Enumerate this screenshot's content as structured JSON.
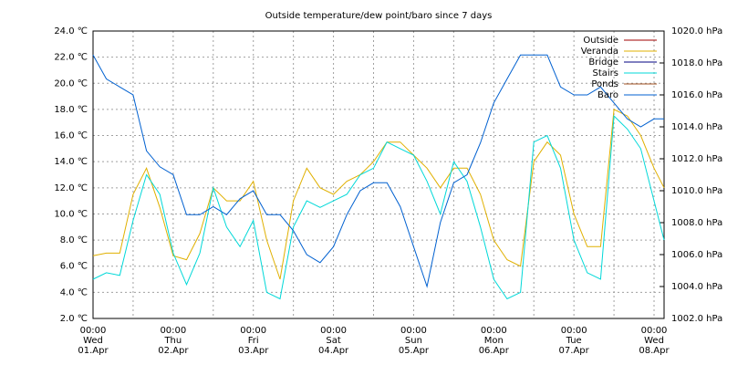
{
  "chart_data": {
    "type": "line",
    "title": "Outside temperature/dew point/baro since 7 days",
    "x": [
      0,
      4,
      8,
      12,
      16,
      20,
      24,
      28,
      32,
      36,
      40,
      44,
      48,
      52,
      56,
      60,
      64,
      68,
      72,
      76,
      80,
      84,
      88,
      92,
      96,
      100,
      104,
      108,
      112,
      116,
      120,
      124,
      128,
      132,
      136,
      140,
      144,
      148,
      152,
      156,
      160,
      164,
      168,
      171
    ],
    "xlim": [
      0,
      171
    ],
    "xticks": [
      {
        "value": 0,
        "label": "00:00\nWed\n01.Apr"
      },
      {
        "value": 24,
        "label": "00:00\nThu\n02.Apr"
      },
      {
        "value": 48,
        "label": "00:00\nFri\n03.Apr"
      },
      {
        "value": 72,
        "label": "00:00\nSat\n04.Apr"
      },
      {
        "value": 96,
        "label": "00:00\nSun\n05.Apr"
      },
      {
        "value": 120,
        "label": "00:00\nMon\n06.Apr"
      },
      {
        "value": 144,
        "label": "00:00\nTue\n07.Apr"
      },
      {
        "value": 168,
        "label": "00:00\nWed\n08.Apr"
      }
    ],
    "xminorticks": [
      12,
      36,
      60,
      84,
      108,
      132,
      156
    ],
    "ylim": [
      2,
      24
    ],
    "yticks": [
      {
        "value": 2,
        "label": "2.0 ℃"
      },
      {
        "value": 4,
        "label": "4.0 ℃"
      },
      {
        "value": 6,
        "label": "6.0 ℃"
      },
      {
        "value": 8,
        "label": "8.0 ℃"
      },
      {
        "value": 10,
        "label": "10.0 ℃"
      },
      {
        "value": 12,
        "label": "12.0 ℃"
      },
      {
        "value": 14,
        "label": "14.0 ℃"
      },
      {
        "value": 16,
        "label": "16.0 ℃"
      },
      {
        "value": 18,
        "label": "18.0 ℃"
      },
      {
        "value": 20,
        "label": "20.0 ℃"
      },
      {
        "value": 22,
        "label": "22.0 ℃"
      },
      {
        "value": 24,
        "label": "24.0 ℃"
      }
    ],
    "y2lim": [
      1002,
      1020
    ],
    "y2ticks": [
      {
        "value": 1002,
        "label": "1002.0 hPa"
      },
      {
        "value": 1004,
        "label": "1004.0 hPa"
      },
      {
        "value": 1006,
        "label": "1006.0 hPa"
      },
      {
        "value": 1008,
        "label": "1008.0 hPa"
      },
      {
        "value": 1010,
        "label": "1010.0 hPa"
      },
      {
        "value": 1012,
        "label": "1012.0 hPa"
      },
      {
        "value": 1014,
        "label": "1014.0 hPa"
      },
      {
        "value": 1016,
        "label": "1016.0 hPa"
      },
      {
        "value": 1018,
        "label": "1018.0 hPa"
      },
      {
        "value": 1020,
        "label": "1020.0 hPa"
      }
    ],
    "grid": true,
    "legend": "top-right",
    "series": [
      {
        "name": "Outside",
        "color": "#a00000",
        "values": [
          null,
          null,
          null,
          null,
          null,
          null,
          null,
          null,
          null,
          null,
          null,
          null,
          null,
          null,
          null,
          null,
          null,
          null,
          null,
          null,
          null,
          null,
          null,
          null,
          null,
          null,
          null,
          null,
          null,
          null,
          null,
          null,
          null,
          null,
          null,
          null,
          null,
          null,
          null,
          null,
          null,
          null,
          null,
          null
        ]
      },
      {
        "name": "Veranda",
        "color": "#e0b000",
        "values": [
          6.8,
          7,
          7,
          11.5,
          13.5,
          10.5,
          6.8,
          6.5,
          8.5,
          12,
          11,
          11,
          12.5,
          8,
          5,
          11,
          13.5,
          12,
          11.5,
          12.5,
          13,
          14,
          15.5,
          15.5,
          14.5,
          13.5,
          12,
          13.5,
          13.5,
          11.5,
          8,
          6.5,
          6,
          14,
          15.5,
          14.5,
          10,
          7.5,
          7.5,
          18,
          17.5,
          16,
          13.5,
          12
        ]
      },
      {
        "name": "Bridge",
        "color": "#000080",
        "values": [
          null,
          null,
          null,
          null,
          null,
          null,
          null,
          null,
          null,
          null,
          null,
          null,
          null,
          null,
          null,
          null,
          null,
          null,
          null,
          null,
          null,
          null,
          null,
          null,
          null,
          null,
          null,
          null,
          null,
          null,
          null,
          null,
          null,
          null,
          null,
          null,
          null,
          null,
          null,
          null,
          null,
          null,
          null,
          null
        ]
      },
      {
        "name": "Stairs",
        "color": "#00d8d8",
        "values": [
          5,
          5.5,
          5.3,
          9.5,
          13,
          11.5,
          7,
          4.6,
          7,
          12,
          9,
          7.5,
          9.5,
          4,
          3.5,
          9,
          11,
          10.5,
          11,
          11.5,
          13,
          13.5,
          15.5,
          15,
          14.5,
          12.5,
          10,
          14,
          12.5,
          9,
          5,
          3.5,
          4,
          15.5,
          16,
          13.5,
          8,
          5.5,
          5,
          17.5,
          16.5,
          15,
          11,
          8
        ]
      },
      {
        "name": "Ponds",
        "color": "#a05020",
        "values": [
          null,
          null,
          null,
          null,
          null,
          null,
          null,
          null,
          null,
          null,
          null,
          null,
          null,
          null,
          null,
          null,
          null,
          null,
          null,
          null,
          null,
          null,
          null,
          null,
          null,
          null,
          null,
          null,
          null,
          null,
          null,
          null,
          null,
          null,
          null,
          null,
          null,
          null,
          null,
          null,
          null,
          null,
          null,
          null
        ]
      },
      {
        "name": "Baro",
        "color": "#0060d0",
        "axis": "y2",
        "values": [
          1018.5,
          1017,
          1016.5,
          1016,
          1012.5,
          1011.5,
          1011,
          1008.5,
          1008.5,
          1009,
          1008.5,
          1009.5,
          1010,
          1008.5,
          1008.5,
          1007.5,
          1006,
          1005.5,
          1006.5,
          1008.5,
          1010,
          1010.5,
          1010.5,
          1009,
          1006.5,
          1004,
          1008,
          1010.5,
          1011,
          1013,
          1015.5,
          1017,
          1018.5,
          1018.5,
          1018.5,
          1016.5,
          1016,
          1016,
          1016.5,
          1015.5,
          1014.5,
          1014,
          1014.5,
          1014.5
        ]
      }
    ]
  }
}
